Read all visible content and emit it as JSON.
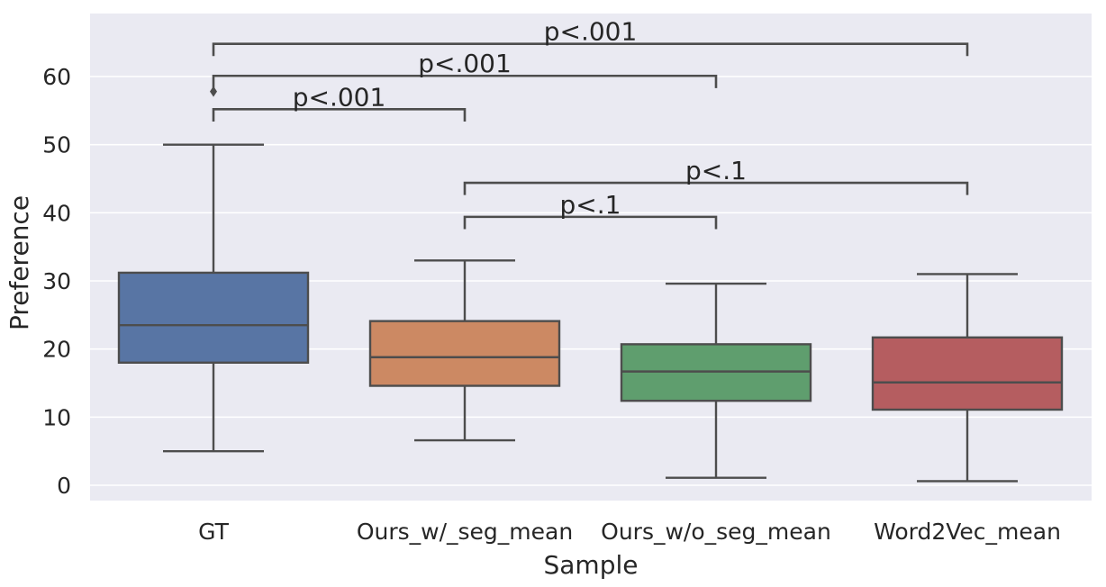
{
  "chart_data": {
    "type": "box",
    "title": "",
    "xlabel": "Sample",
    "ylabel": "Preference",
    "ylim": [
      -2.5,
      66
    ],
    "yticks": [
      0,
      10,
      20,
      30,
      40,
      50,
      60
    ],
    "ytick_labels": [
      "0",
      "10",
      "20",
      "30",
      "40",
      "50",
      "60"
    ],
    "grid": true,
    "background": "#EAEAF2",
    "categories": [
      "GT",
      "Ours_w/_seg_mean",
      "Ours_w/o_seg_mean",
      "Word2Vec_mean"
    ],
    "boxes": [
      {
        "category": "GT",
        "whisker_low": 5,
        "q1": 18,
        "median": 23.5,
        "q3": 31.2,
        "whisker_high": 50,
        "outliers": [
          57.8
        ],
        "color": "#5875A4"
      },
      {
        "category": "Ours_w/_seg_mean",
        "whisker_low": 6.6,
        "q1": 14.6,
        "median": 18.8,
        "q3": 24.1,
        "whisker_high": 33,
        "outliers": [],
        "color": "#CC8963"
      },
      {
        "category": "Ours_w/o_seg_mean",
        "whisker_low": 1.1,
        "q1": 12.4,
        "median": 16.7,
        "q3": 20.7,
        "whisker_high": 29.6,
        "outliers": [],
        "color": "#5F9E6E"
      },
      {
        "category": "Word2Vec_mean",
        "whisker_low": 0.6,
        "q1": 11.1,
        "median": 15.1,
        "q3": 21.7,
        "whisker_high": 31,
        "outliers": [],
        "color": "#B55D60"
      }
    ],
    "annotations": [
      {
        "from": 0,
        "to": 3,
        "y": 64.8,
        "h": 1.8,
        "text": "p<.001"
      },
      {
        "from": 0,
        "to": 2,
        "y": 60.1,
        "h": 1.8,
        "text": "p<.001"
      },
      {
        "from": 0,
        "to": 1,
        "y": 55.2,
        "h": 1.8,
        "text": "p<.001"
      },
      {
        "from": 1,
        "to": 3,
        "y": 44.4,
        "h": 1.8,
        "text": "p<.1"
      },
      {
        "from": 1,
        "to": 2,
        "y": 39.4,
        "h": 1.8,
        "text": "p<.1"
      }
    ]
  }
}
